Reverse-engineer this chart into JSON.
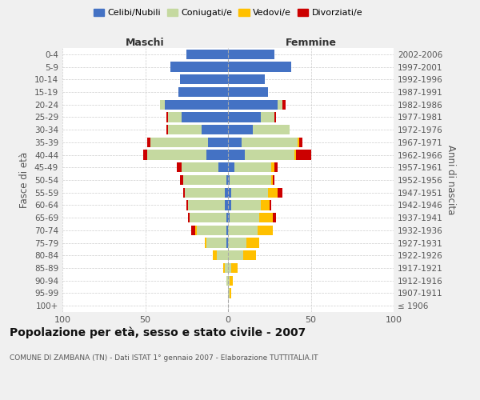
{
  "age_groups": [
    "100+",
    "95-99",
    "90-94",
    "85-89",
    "80-84",
    "75-79",
    "70-74",
    "65-69",
    "60-64",
    "55-59",
    "50-54",
    "45-49",
    "40-44",
    "35-39",
    "30-34",
    "25-29",
    "20-24",
    "15-19",
    "10-14",
    "5-9",
    "0-4"
  ],
  "birth_years": [
    "≤ 1906",
    "1907-1911",
    "1912-1916",
    "1917-1921",
    "1922-1926",
    "1927-1931",
    "1932-1936",
    "1937-1941",
    "1942-1946",
    "1947-1951",
    "1952-1956",
    "1957-1961",
    "1962-1966",
    "1967-1971",
    "1972-1976",
    "1977-1981",
    "1982-1986",
    "1987-1991",
    "1992-1996",
    "1997-2001",
    "2002-2006"
  ],
  "maschi": {
    "celibi": [
      0,
      0,
      0,
      0,
      0,
      1,
      1,
      1,
      2,
      2,
      1,
      6,
      13,
      12,
      16,
      28,
      38,
      30,
      29,
      35,
      25
    ],
    "coniugati": [
      0,
      0,
      1,
      2,
      7,
      12,
      18,
      22,
      22,
      24,
      26,
      22,
      36,
      35,
      20,
      8,
      3,
      0,
      0,
      0,
      0
    ],
    "vedovi": [
      0,
      0,
      0,
      1,
      2,
      1,
      1,
      0,
      0,
      0,
      0,
      0,
      0,
      0,
      0,
      0,
      0,
      0,
      0,
      0,
      0
    ],
    "divorziati": [
      0,
      0,
      0,
      0,
      0,
      0,
      2,
      1,
      1,
      1,
      2,
      3,
      2,
      2,
      1,
      1,
      0,
      0,
      0,
      0,
      0
    ]
  },
  "femmine": {
    "nubili": [
      0,
      0,
      0,
      0,
      0,
      0,
      0,
      1,
      2,
      2,
      1,
      4,
      10,
      8,
      15,
      20,
      30,
      24,
      22,
      38,
      28
    ],
    "coniugate": [
      0,
      1,
      1,
      2,
      9,
      11,
      18,
      18,
      18,
      22,
      25,
      22,
      30,
      34,
      22,
      8,
      3,
      0,
      0,
      0,
      0
    ],
    "vedove": [
      0,
      1,
      2,
      4,
      8,
      8,
      9,
      8,
      5,
      6,
      1,
      2,
      1,
      1,
      0,
      0,
      0,
      0,
      0,
      0,
      0
    ],
    "divorziate": [
      0,
      0,
      0,
      0,
      0,
      0,
      0,
      2,
      1,
      3,
      1,
      2,
      9,
      2,
      0,
      1,
      2,
      0,
      0,
      0,
      0
    ]
  },
  "colors": {
    "celibi": "#4472c4",
    "coniugati": "#c5d9a0",
    "vedovi": "#ffc000",
    "divorziati": "#cc0000"
  },
  "xlim": 100,
  "title": "Popolazione per età, sesso e stato civile - 2007",
  "subtitle": "COMUNE DI ZAMBANA (TN) - Dati ISTAT 1° gennaio 2007 - Elaborazione TUTTITALIA.IT",
  "ylabel_left": "Fasce di età",
  "ylabel_right": "Anni di nascita",
  "xlabel_left": "Maschi",
  "xlabel_right": "Femmine",
  "bg_color": "#f0f0f0",
  "plot_bg": "#ffffff"
}
